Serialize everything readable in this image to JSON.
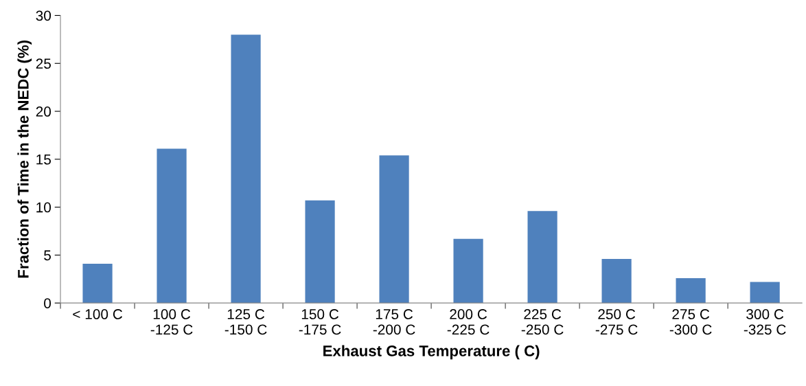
{
  "chart_data": {
    "type": "bar",
    "xlabel": "Exhaust Gas Temperature ( C)",
    "ylabel": "Fraction of Time in the NEDC (%)",
    "categories": [
      "< 100 C",
      "100 C\n-125 C",
      "125 C\n-150 C",
      "150 C\n-175 C",
      "175 C\n-200 C",
      "200 C\n-225 C",
      "225 C\n-250 C",
      "250 C\n-275 C",
      "275 C\n-300 C",
      "300 C\n-325 C"
    ],
    "values": [
      4.1,
      16.1,
      28.0,
      10.7,
      15.4,
      6.7,
      9.6,
      4.6,
      2.6,
      2.2
    ],
    "color": "#4f81bd",
    "ylim": [
      0,
      30
    ],
    "yticks": [
      0,
      5,
      10,
      15,
      20,
      25,
      30
    ],
    "grid": false
  }
}
